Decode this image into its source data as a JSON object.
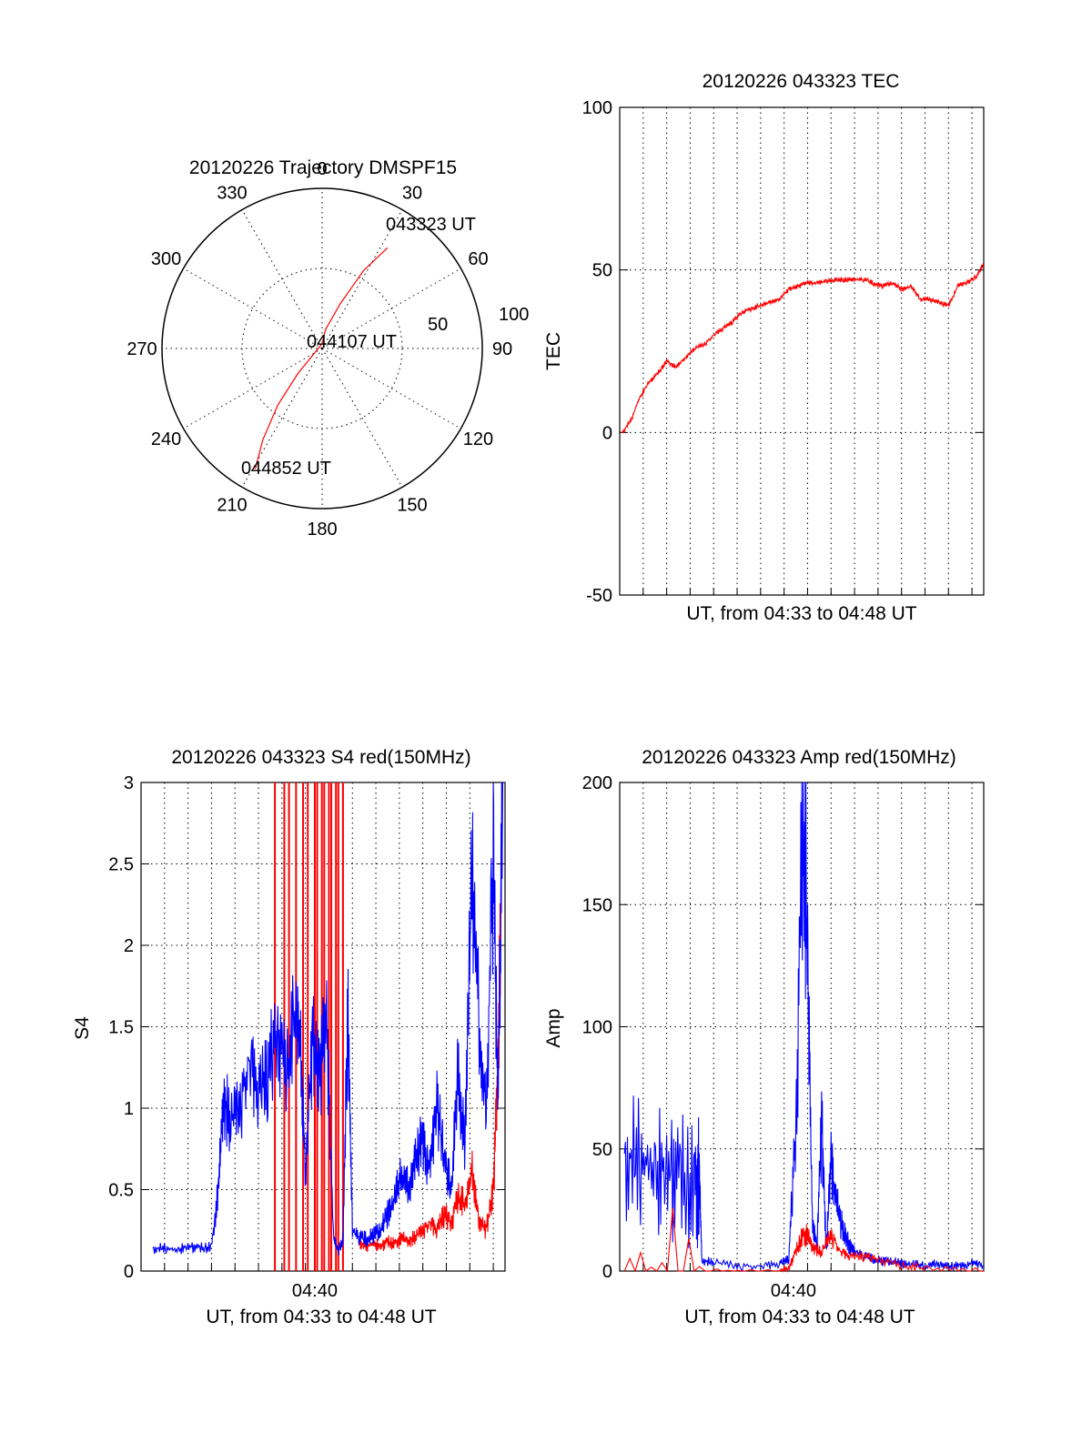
{
  "chart_data": [
    {
      "type": "polar",
      "title": "20120226 Trajectory DMSPF15",
      "angle_labels": [
        "0",
        "30",
        "60",
        "90",
        "120",
        "150",
        "180",
        "210",
        "240",
        "270",
        "300",
        "330"
      ],
      "radial_labels": [
        "50",
        "100"
      ],
      "rlim": [
        0,
        100
      ],
      "grid": true,
      "track": {
        "color": "#ff0000",
        "points": [
          {
            "az": 33,
            "r": 75
          },
          {
            "az": 28,
            "r": 55
          },
          {
            "az": 22,
            "r": 30
          },
          {
            "az": 10,
            "r": 12
          },
          {
            "az": 0,
            "r": 3
          },
          {
            "az": 224,
            "r": 22
          },
          {
            "az": 218,
            "r": 45
          },
          {
            "az": 213,
            "r": 68
          },
          {
            "az": 209,
            "r": 86
          }
        ]
      },
      "annotations": [
        {
          "text": "043323 UT",
          "az": 33,
          "r": 75
        },
        {
          "text": "044107 UT",
          "az": 0,
          "r": 0
        },
        {
          "text": "044852 UT",
          "az": 209,
          "r": 86
        }
      ]
    },
    {
      "type": "line",
      "title": "20120226 043323 TEC",
      "xlabel": "UT, from 04:33 to 04:48 UT",
      "ylabel": "TEC",
      "ylim": [
        -50,
        100
      ],
      "yticks": [
        "-50",
        "0",
        "50",
        "100"
      ],
      "xlim": [
        0,
        15.5
      ],
      "x_unit": "minutes after 04:33",
      "grid": true,
      "series": [
        {
          "color": "#ff0000",
          "x": [
            0.1,
            0.5,
            0.8,
            1.2,
            1.6,
            2.0,
            2.4,
            2.8,
            3.2,
            3.6,
            4.0,
            4.4,
            4.8,
            5.2,
            5.6,
            6.0,
            6.4,
            6.8,
            7.2,
            7.6,
            8.0,
            8.4,
            8.8,
            9.2,
            9.6,
            10.0,
            10.4,
            10.8,
            11.2,
            11.6,
            12.0,
            12.4,
            12.8,
            13.2,
            13.6,
            14.0,
            14.4,
            14.8,
            15.2,
            15.5
          ],
          "y": [
            0,
            4,
            10,
            15,
            18,
            22,
            20,
            23,
            26,
            27,
            30,
            32,
            34,
            37,
            38,
            39,
            40,
            41,
            44,
            45,
            46,
            46,
            46.5,
            47,
            47,
            47,
            47,
            46,
            45,
            46,
            44,
            45,
            41,
            41,
            40,
            39,
            45,
            46,
            48,
            52
          ]
        }
      ]
    },
    {
      "type": "line",
      "title": "20120226 043323 S4 red(150MHz)",
      "xlabel": "UT, from 04:33 to 04:48 UT",
      "xtick_labels": [
        "04:40"
      ],
      "xtick_values": [
        7.4
      ],
      "ylabel": "S4",
      "ylim": [
        0,
        3
      ],
      "yticks": [
        "0",
        "0.5",
        "1",
        "1.5",
        "2",
        "2.5",
        "3"
      ],
      "xlim": [
        0,
        15.5
      ],
      "x_unit": "minutes after 04:33",
      "grid": true,
      "series": [
        {
          "color": "#0000ff",
          "x": [
            0.5,
            1.0,
            1.5,
            2.0,
            2.5,
            3.0,
            3.3,
            3.5,
            3.8,
            4.2,
            4.6,
            5.0,
            5.4,
            5.8,
            6.2,
            6.6,
            6.8,
            7.0,
            7.3,
            7.6,
            7.9,
            8.2,
            8.4,
            8.6,
            8.8,
            9.0,
            9.3,
            9.6,
            9.9,
            10.2,
            10.5,
            10.8,
            11.1,
            11.4,
            11.7,
            12.0,
            12.3,
            12.6,
            12.9,
            13.2,
            13.5,
            13.8,
            14.1,
            14.4,
            14.7,
            15.0,
            15.2,
            15.4
          ],
          "y": [
            0.14,
            0.14,
            0.13,
            0.15,
            0.14,
            0.15,
            0.5,
            1.05,
            0.95,
            1.0,
            1.3,
            1.1,
            1.2,
            1.5,
            1.2,
            1.6,
            1.3,
            0.6,
            1.4,
            1.2,
            1.5,
            0.2,
            0.12,
            0.2,
            1.6,
            0.25,
            0.2,
            0.2,
            0.22,
            0.25,
            0.35,
            0.45,
            0.6,
            0.5,
            0.7,
            0.8,
            0.6,
            1.0,
            0.7,
            0.5,
            1.2,
            0.8,
            2.5,
            1.5,
            1.0,
            2.5,
            1.0,
            3.0
          ]
        },
        {
          "color": "#ff0000",
          "x": [
            9.3,
            9.6,
            9.9,
            10.2,
            10.5,
            10.8,
            11.1,
            11.4,
            11.7,
            12.0,
            12.3,
            12.6,
            12.9,
            13.2,
            13.5,
            13.8,
            14.1,
            14.4,
            14.7,
            15.0,
            15.2,
            15.4
          ],
          "y": [
            0.18,
            0.15,
            0.17,
            0.15,
            0.18,
            0.17,
            0.2,
            0.18,
            0.22,
            0.25,
            0.3,
            0.25,
            0.35,
            0.3,
            0.45,
            0.4,
            0.6,
            0.3,
            0.25,
            0.5,
            1.2,
            3.0
          ]
        }
      ],
      "red_spikes_x": [
        5.7,
        6.1,
        6.3,
        6.6,
        6.9,
        7.1,
        7.4,
        7.5,
        7.7,
        7.8,
        8.0,
        8.1,
        8.3,
        8.4,
        8.6
      ],
      "red_spike_ylim": [
        0,
        3
      ]
    },
    {
      "type": "line",
      "title": "20120226 043323 Amp red(150MHz)",
      "xlabel": "UT, from 04:33 to 04:48 UT",
      "xtick_labels": [
        "04:40"
      ],
      "xtick_values": [
        7.4
      ],
      "ylabel": "Amp",
      "ylim": [
        0,
        200
      ],
      "yticks": [
        "0",
        "50",
        "100",
        "150",
        "200"
      ],
      "xlim": [
        0,
        15.5
      ],
      "x_unit": "minutes after 04:33",
      "grid": true,
      "series": [
        {
          "color": "#0000ff",
          "x": [
            0.2,
            0.8,
            1.4,
            2.0,
            2.6,
            3.2,
            3.4,
            3.5,
            4.0,
            5.0,
            6.0,
            6.8,
            7.2,
            7.5,
            7.8,
            8.0,
            8.2,
            8.4,
            8.6,
            8.8,
            9.0,
            9.2,
            9.4,
            9.6,
            9.8,
            10.0,
            10.4,
            10.8,
            11.2,
            11.6,
            12.0,
            12.5,
            13.0,
            13.5,
            14.0,
            14.5,
            15.0,
            15.5
          ],
          "y": [
            48,
            45,
            43,
            40,
            38,
            36,
            35,
            4,
            4,
            2,
            2,
            3,
            5,
            60,
            185,
            130,
            20,
            10,
            60,
            8,
            45,
            30,
            20,
            15,
            10,
            8,
            6,
            5,
            4,
            4,
            3,
            3,
            2,
            3,
            2,
            2,
            3,
            2
          ]
        },
        {
          "color": "#ff0000",
          "x": [
            0.2,
            3.4,
            6.8,
            7.2,
            7.5,
            7.8,
            8.0,
            8.2,
            8.6,
            9.0,
            9.4,
            9.8,
            10.4,
            11.0,
            12.0,
            13.0,
            15.5
          ],
          "y": [
            0,
            0,
            0,
            1,
            8,
            15,
            14,
            10,
            8,
            15,
            8,
            6,
            6,
            5,
            2,
            1,
            0
          ]
        }
      ]
    }
  ]
}
